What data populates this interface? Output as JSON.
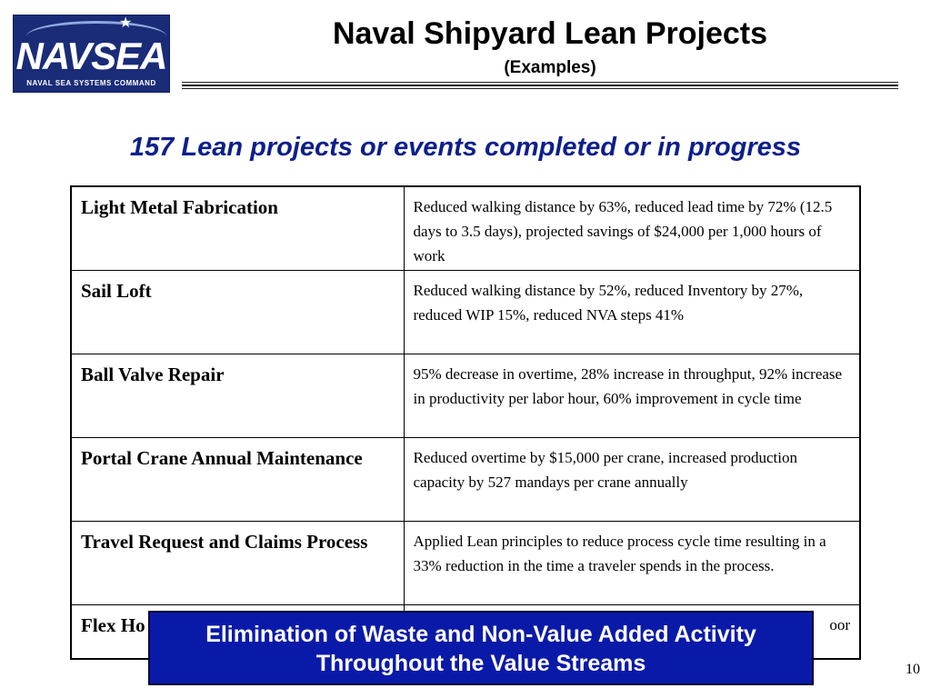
{
  "logo": {
    "wordmark": "NAVSEA",
    "tagline": "NAVAL SEA SYSTEMS COMMAND",
    "star": "★"
  },
  "header": {
    "title": "Naval Shipyard Lean Projects",
    "subtitle": "(Examples)"
  },
  "headline": "157 Lean projects or events completed or in progress",
  "projects": [
    {
      "name": "Light Metal Fabrication",
      "result": "Reduced walking distance by 63%, reduced lead time by 72% (12.5 days to 3.5 days), projected savings of $24,000 per 1,000 hours of work"
    },
    {
      "name": "Sail Loft",
      "result": "Reduced walking distance by 52%, reduced Inventory by 27%, reduced WIP 15%, reduced NVA steps 41%"
    },
    {
      "name": "Ball Valve Repair",
      "result": "95% decrease in overtime, 28% increase in throughput, 92% increase in productivity per labor hour, 60% improvement in cycle time"
    },
    {
      "name": "Portal Crane Annual Maintenance",
      "result": "Reduced overtime by $15,000 per crane, increased production capacity by 527 mandays per crane annually"
    },
    {
      "name": "Travel Request and Claims Process",
      "result": "Applied Lean principles to reduce process cycle time resulting in a 33% reduction in the time a traveler spends in the process."
    },
    {
      "name": "Flex Ho",
      "result": "oor"
    }
  ],
  "banner": {
    "line1": "Elimination of Waste and Non-Value Added Activity",
    "line2": "Throughout the Value Streams"
  },
  "page_number": "10",
  "colors": {
    "logo_background": "#1a2c78",
    "headline": "#0d1f8c",
    "banner_background": "#0a1aa8",
    "banner_text": "#ffffff"
  }
}
